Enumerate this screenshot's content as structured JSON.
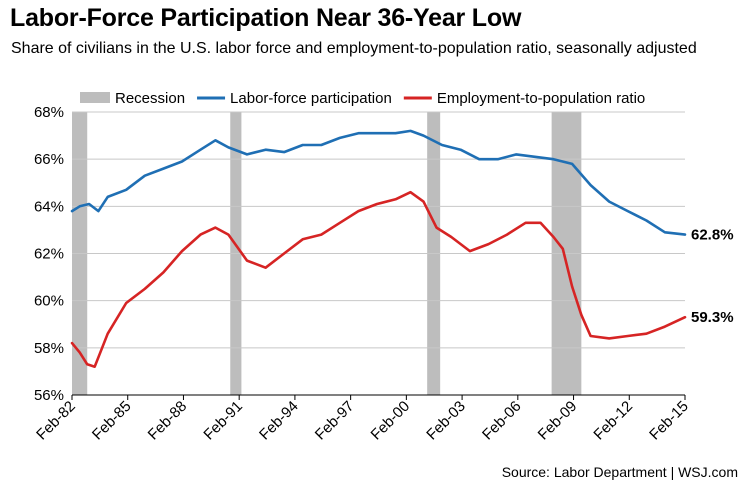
{
  "header": {
    "title": "Labor-Force Participation Near 36-Year Low",
    "subtitle": "Share of civilians in the U.S. labor force and employment-to-population ratio, seasonally adjusted"
  },
  "footer": {
    "source": "Source: Labor Department  |  WSJ.com"
  },
  "chart_data": {
    "type": "line",
    "x_unit": "year",
    "xlim": [
      1982.08,
      2015.08
    ],
    "ylim": [
      56,
      68
    ],
    "y_ticks": [
      56,
      58,
      60,
      62,
      64,
      66,
      68
    ],
    "y_tick_labels": [
      "56%",
      "58%",
      "60%",
      "62%",
      "64%",
      "66%",
      "68%"
    ],
    "x_ticks": [
      1982.08,
      1985.08,
      1988.08,
      1991.08,
      1994.08,
      1997.08,
      2000.08,
      2003.08,
      2006.08,
      2009.08,
      2012.08,
      2015.08
    ],
    "x_tick_labels": [
      "Feb-82",
      "Feb-85",
      "Feb-88",
      "Feb-91",
      "Feb-94",
      "Feb-97",
      "Feb-00",
      "Feb-03",
      "Feb-06",
      "Feb-09",
      "Feb-12",
      "Feb-15"
    ],
    "grid": "horizontal",
    "legend_position": "top",
    "recessions": [
      {
        "start": 1982.0,
        "end": 1982.9
      },
      {
        "start": 1990.6,
        "end": 1991.2
      },
      {
        "start": 2001.2,
        "end": 2001.9
      },
      {
        "start": 2007.9,
        "end": 2009.5
      }
    ],
    "recession_label": "Recession",
    "recession_color": "#bdbdbd",
    "series": [
      {
        "name": "Labor-force participation",
        "color": "#1f6fb4",
        "end_label": "62.8%",
        "points": [
          [
            1982.08,
            63.8
          ],
          [
            1982.5,
            64.0
          ],
          [
            1983.0,
            64.1
          ],
          [
            1983.5,
            63.8
          ],
          [
            1984.0,
            64.4
          ],
          [
            1985.0,
            64.7
          ],
          [
            1986.0,
            65.3
          ],
          [
            1987.0,
            65.6
          ],
          [
            1988.0,
            65.9
          ],
          [
            1989.0,
            66.4
          ],
          [
            1989.8,
            66.8
          ],
          [
            1990.5,
            66.5
          ],
          [
            1991.5,
            66.2
          ],
          [
            1992.5,
            66.4
          ],
          [
            1993.5,
            66.3
          ],
          [
            1994.5,
            66.6
          ],
          [
            1995.5,
            66.6
          ],
          [
            1996.5,
            66.9
          ],
          [
            1997.5,
            67.1
          ],
          [
            1998.5,
            67.1
          ],
          [
            1999.5,
            67.1
          ],
          [
            2000.3,
            67.2
          ],
          [
            2001.0,
            67.0
          ],
          [
            2002.0,
            66.6
          ],
          [
            2003.0,
            66.4
          ],
          [
            2004.0,
            66.0
          ],
          [
            2005.0,
            66.0
          ],
          [
            2006.0,
            66.2
          ],
          [
            2007.0,
            66.1
          ],
          [
            2008.0,
            66.0
          ],
          [
            2009.0,
            65.8
          ],
          [
            2010.0,
            64.9
          ],
          [
            2011.0,
            64.2
          ],
          [
            2012.0,
            63.8
          ],
          [
            2013.0,
            63.4
          ],
          [
            2014.0,
            62.9
          ],
          [
            2015.08,
            62.8
          ]
        ]
      },
      {
        "name": "Employment-to-population ratio",
        "color": "#d62424",
        "end_label": "59.3%",
        "points": [
          [
            1982.08,
            58.2
          ],
          [
            1982.5,
            57.8
          ],
          [
            1982.9,
            57.3
          ],
          [
            1983.3,
            57.2
          ],
          [
            1984.0,
            58.6
          ],
          [
            1985.0,
            59.9
          ],
          [
            1986.0,
            60.5
          ],
          [
            1987.0,
            61.2
          ],
          [
            1988.0,
            62.1
          ],
          [
            1989.0,
            62.8
          ],
          [
            1989.8,
            63.1
          ],
          [
            1990.5,
            62.8
          ],
          [
            1991.5,
            61.7
          ],
          [
            1992.5,
            61.4
          ],
          [
            1993.5,
            62.0
          ],
          [
            1994.5,
            62.6
          ],
          [
            1995.5,
            62.8
          ],
          [
            1996.5,
            63.3
          ],
          [
            1997.5,
            63.8
          ],
          [
            1998.5,
            64.1
          ],
          [
            1999.5,
            64.3
          ],
          [
            2000.3,
            64.6
          ],
          [
            2001.0,
            64.2
          ],
          [
            2001.7,
            63.1
          ],
          [
            2002.5,
            62.7
          ],
          [
            2003.5,
            62.1
          ],
          [
            2004.5,
            62.4
          ],
          [
            2005.5,
            62.8
          ],
          [
            2006.5,
            63.3
          ],
          [
            2007.3,
            63.3
          ],
          [
            2008.0,
            62.7
          ],
          [
            2008.5,
            62.2
          ],
          [
            2009.0,
            60.6
          ],
          [
            2009.5,
            59.4
          ],
          [
            2010.0,
            58.5
          ],
          [
            2011.0,
            58.4
          ],
          [
            2012.0,
            58.5
          ],
          [
            2013.0,
            58.6
          ],
          [
            2014.0,
            58.9
          ],
          [
            2015.08,
            59.3
          ]
        ]
      }
    ]
  }
}
